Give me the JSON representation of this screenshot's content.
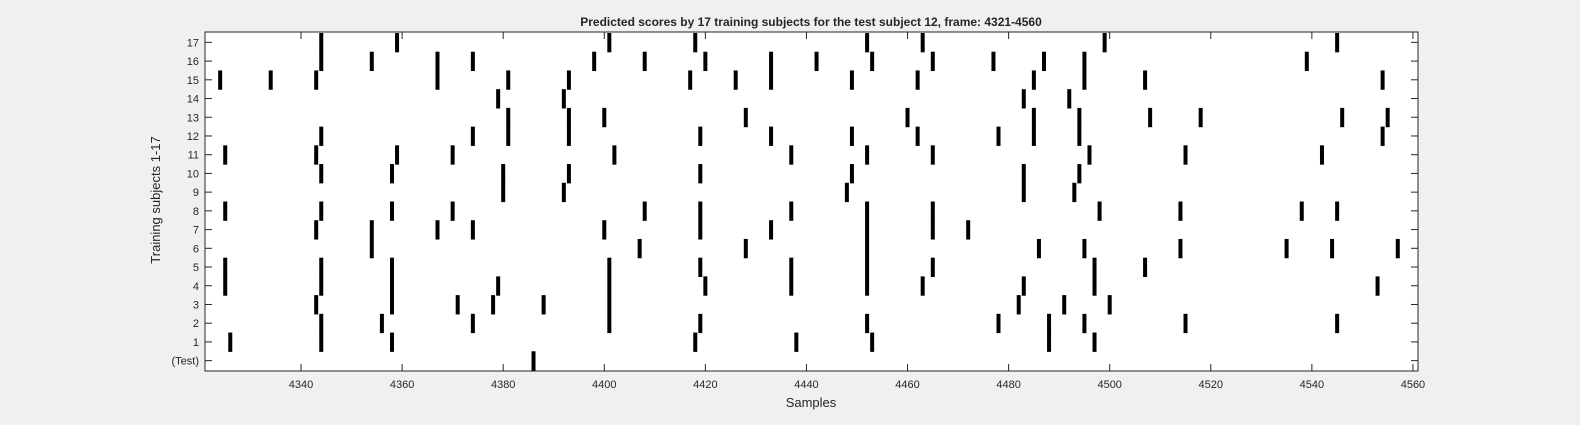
{
  "chart_data": {
    "type": "raster",
    "title": "Predicted scores by 17 training subjects for the test subject 12, frame: 4321-4560",
    "xlabel": "Samples",
    "ylabel": "Training subjects 1-17",
    "xlim": [
      4321,
      4561
    ],
    "x_ticks": [
      4340,
      4360,
      4380,
      4400,
      4420,
      4440,
      4460,
      4480,
      4500,
      4520,
      4540,
      4560
    ],
    "y_tick_labels": [
      "(Test)",
      "1",
      "2",
      "3",
      "4",
      "5",
      "6",
      "7",
      "8",
      "9",
      "10",
      "11",
      "12",
      "13",
      "14",
      "15",
      "16",
      "17"
    ],
    "mark_color": "#000000",
    "background": "#ffffff",
    "grid": false,
    "series": [
      {
        "name": "(Test)",
        "x": [
          4386
        ]
      },
      {
        "name": "1",
        "x": [
          4326,
          4344,
          4358,
          4418,
          4438,
          4453,
          4488,
          4497
        ]
      },
      {
        "name": "2",
        "x": [
          4344,
          4356,
          4374,
          4401,
          4419,
          4452,
          4478,
          4488,
          4495,
          4515,
          4545
        ]
      },
      {
        "name": "3",
        "x": [
          4343,
          4358,
          4371,
          4378,
          4388,
          4401,
          4482,
          4491,
          4500
        ]
      },
      {
        "name": "4",
        "x": [
          4325,
          4344,
          4358,
          4379,
          4401,
          4420,
          4437,
          4452,
          4463,
          4483,
          4497,
          4553
        ]
      },
      {
        "name": "5",
        "x": [
          4325,
          4344,
          4358,
          4401,
          4419,
          4437,
          4452,
          4465,
          4497,
          4507
        ]
      },
      {
        "name": "6",
        "x": [
          4354,
          4407,
          4428,
          4452,
          4486,
          4495,
          4514,
          4535,
          4544,
          4557
        ]
      },
      {
        "name": "7",
        "x": [
          4343,
          4354,
          4367,
          4374,
          4400,
          4419,
          4433,
          4452,
          4465,
          4472
        ]
      },
      {
        "name": "8",
        "x": [
          4325,
          4344,
          4358,
          4370,
          4408,
          4419,
          4437,
          4452,
          4465,
          4498,
          4514,
          4538,
          4545
        ]
      },
      {
        "name": "9",
        "x": [
          4380,
          4392,
          4448,
          4483,
          4493
        ]
      },
      {
        "name": "10",
        "x": [
          4344,
          4358,
          4380,
          4393,
          4419,
          4449,
          4483,
          4494
        ]
      },
      {
        "name": "11",
        "x": [
          4325,
          4343,
          4359,
          4370,
          4402,
          4437,
          4452,
          4465,
          4496,
          4515,
          4542
        ]
      },
      {
        "name": "12",
        "x": [
          4344,
          4374,
          4381,
          4393,
          4419,
          4433,
          4449,
          4462,
          4478,
          4485,
          4494,
          4554
        ]
      },
      {
        "name": "13",
        "x": [
          4381,
          4393,
          4400,
          4428,
          4460,
          4485,
          4494,
          4508,
          4518,
          4546,
          4555
        ]
      },
      {
        "name": "14",
        "x": [
          4379,
          4392,
          4483,
          4492
        ]
      },
      {
        "name": "15",
        "x": [
          4324,
          4334,
          4343,
          4367,
          4381,
          4393,
          4417,
          4426,
          4433,
          4449,
          4462,
          4485,
          4495,
          4507,
          4554
        ]
      },
      {
        "name": "16",
        "x": [
          4344,
          4354,
          4367,
          4374,
          4398,
          4408,
          4420,
          4433,
          4442,
          4453,
          4465,
          4477,
          4487,
          4495,
          4539
        ]
      },
      {
        "name": "17",
        "x": [
          4344,
          4359,
          4401,
          4418,
          4452,
          4463,
          4499,
          4545
        ]
      }
    ]
  }
}
